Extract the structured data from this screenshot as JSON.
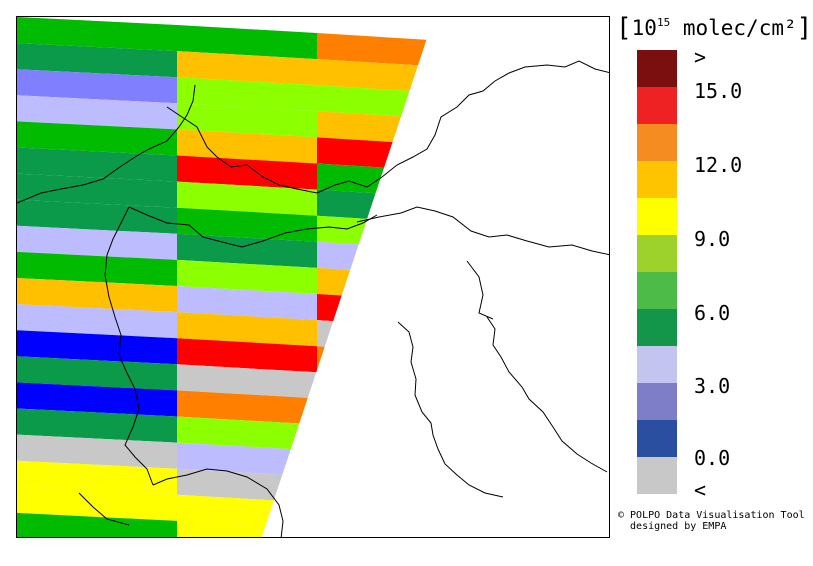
{
  "legend": {
    "unit_bracket_open": "[",
    "unit_exponent_base": "10",
    "unit_exponent": "15",
    "unit_text": " molec/cm²",
    "unit_bracket_close": "]",
    "tick_labels": [
      ">",
      "15.0",
      "12.0",
      "9.0",
      "6.0",
      "3.0",
      "0.0",
      "<"
    ],
    "colors": [
      "#7b0f0f",
      "#ee2222",
      "#f58c22",
      "#ffc400",
      "#ffff00",
      "#9dd12c",
      "#4cbb47",
      "#14964a",
      "#c4c4f0",
      "#7e7ec8",
      "#2b4fa0",
      "#c8c8c8"
    ]
  },
  "credit": {
    "line1": "© POLPO Data Visualisation Tool",
    "line2": "  designed by EMPA"
  },
  "map": {
    "region": "Northern Italy / Alps",
    "strip_colors": [
      "#00bb00",
      "#0a9a4a",
      "#8080ff",
      "#bcbcff",
      "#00bb00",
      "#0a9a4a",
      "#0a9a4a",
      "#0a9a4a",
      "#bcbcff",
      "#00bb00",
      "#ffc000",
      "#bcbcff",
      "#0000ff",
      "#0a9a4a",
      "#0000ff",
      "#0a9a4a",
      "#c8c8c8",
      "#ffff00",
      "#ffff00",
      "#00bb00"
    ],
    "swath_colors": [
      "#00bb00",
      "#ffc000",
      "#8cff00",
      "#8cff00",
      "#ffc000",
      "#ff0000",
      "#8cff00",
      "#00bb00",
      "#0a9a4a",
      "#8cff00",
      "#bcbcff",
      "#ffc000",
      "#ff0000",
      "#c8c8c8",
      "#ff8000",
      "#8cff00",
      "#bcbcff",
      "#c8c8c8",
      "#ffff00",
      "#ffff00"
    ],
    "swath_right_colors": [
      "#ff8000",
      "#ffc000",
      "#8cff00",
      "#ffc000",
      "#ff0000",
      "#00bb00",
      "#0a9a4a",
      "#8cff00",
      "#bcbcff",
      "#ffc000",
      "#ff0000",
      "#c8c8c8",
      "#ff8000",
      "#8cff00",
      "#bcbcff",
      "#c8c8c8",
      "#ffff00",
      "#c8c8c8",
      "#ffff00",
      "#ffff00"
    ]
  }
}
